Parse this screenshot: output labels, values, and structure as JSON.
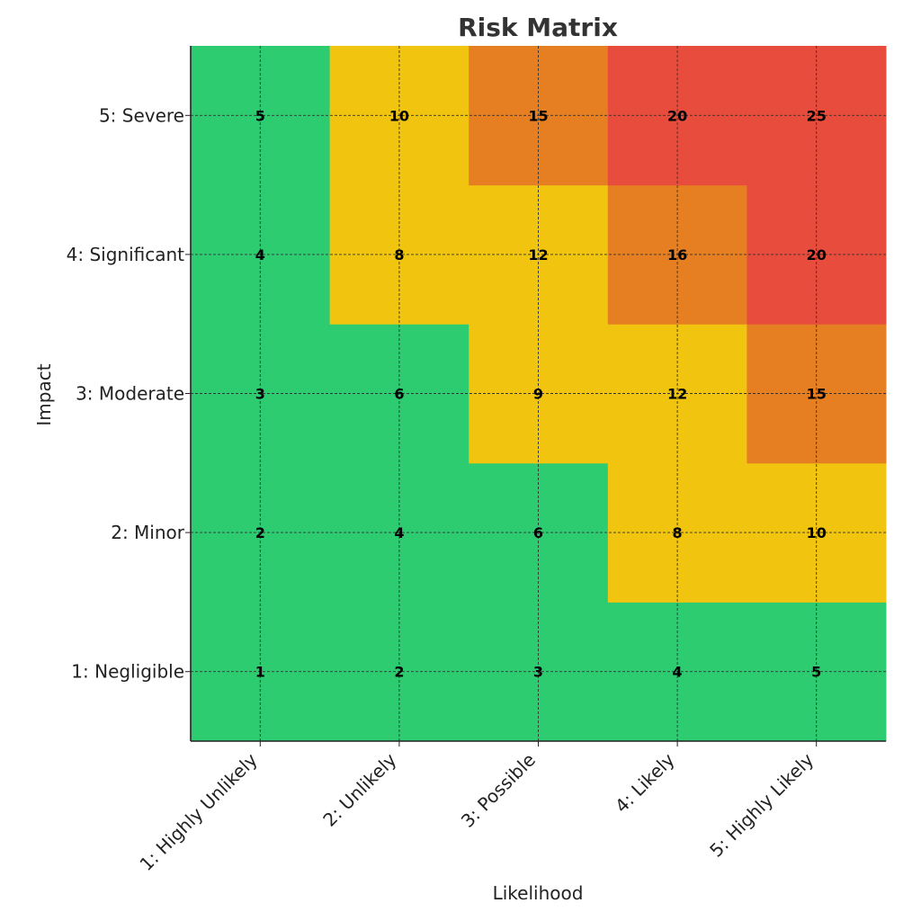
{
  "chart_data": {
    "type": "heatmap",
    "title": "Risk Matrix",
    "xlabel": "Likelihood",
    "ylabel": "Impact",
    "x_categories": [
      "1: Highly Unlikely",
      "2: Unlikely",
      "3: Possible",
      "4: Likely",
      "5: Highly Likely"
    ],
    "y_categories": [
      "1: Negligible",
      "2: Minor",
      "3: Moderate",
      "4: Significant",
      "5: Severe"
    ],
    "values": [
      [
        1,
        2,
        3,
        4,
        5
      ],
      [
        2,
        4,
        6,
        8,
        10
      ],
      [
        3,
        6,
        9,
        12,
        15
      ],
      [
        4,
        8,
        12,
        16,
        20
      ],
      [
        5,
        10,
        15,
        20,
        25
      ]
    ],
    "values_orientation": "rows indexed by y_categories (bottom to top), columns by x_categories (left to right)",
    "color_bands": [
      {
        "max": 6,
        "color": "#2ecc71"
      },
      {
        "max": 12,
        "color": "#f1c40f"
      },
      {
        "max": 16,
        "color": "#e67e22"
      },
      {
        "max": 25,
        "color": "#e74c3c"
      }
    ],
    "grid": true,
    "grid_style": "dashed"
  }
}
